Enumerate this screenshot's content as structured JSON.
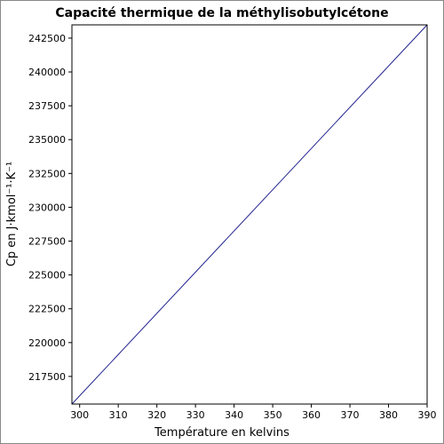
{
  "chart_data": {
    "type": "line",
    "title": "Capacité thermique de la méthylisobutylcétone",
    "x_label": "Température en kelvins",
    "y_label": "Cp en J·kmol⁻¹·K⁻¹",
    "x": [
      298,
      390
    ],
    "series": [
      {
        "color": "#22228f",
        "values": [
          215460,
          243480
        ]
      }
    ],
    "xlim": [
      298,
      390
    ],
    "xticks": [
      300,
      310,
      320,
      330,
      340,
      350,
      360,
      370,
      380,
      390
    ],
    "ylim": [
      215460,
      243480
    ],
    "yticks": [
      217500,
      220000,
      222500,
      225000,
      227500,
      230000,
      232500,
      235000,
      237500,
      240000,
      242500
    ],
    "grid": false
  }
}
